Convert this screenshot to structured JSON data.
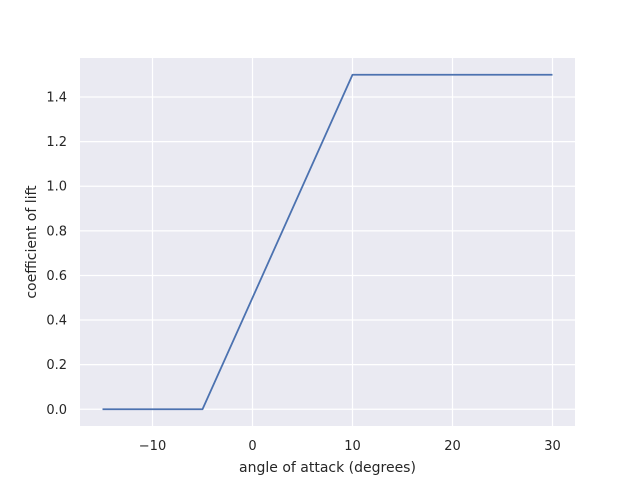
{
  "chart_data": {
    "type": "line",
    "title": "",
    "xlabel": "angle of attack (degrees)",
    "ylabel": "coefficient of lift",
    "xlim": [
      -17.25,
      32.25
    ],
    "ylim": [
      -0.075,
      1.575
    ],
    "xticks": [
      -10,
      0,
      10,
      20,
      30
    ],
    "xtick_labels": [
      "−10",
      "0",
      "10",
      "20",
      "30"
    ],
    "yticks": [
      0.0,
      0.2,
      0.4,
      0.6,
      0.8,
      1.0,
      1.2,
      1.4
    ],
    "ytick_labels": [
      "0.0",
      "0.2",
      "0.4",
      "0.6",
      "0.8",
      "1.0",
      "1.2",
      "1.4"
    ],
    "grid": true,
    "background": "#eaeaf2",
    "series": [
      {
        "color": "#4c72b0",
        "x": [
          -15,
          -5,
          10,
          30
        ],
        "y": [
          0.0,
          0.0,
          1.5,
          1.5
        ]
      }
    ]
  }
}
